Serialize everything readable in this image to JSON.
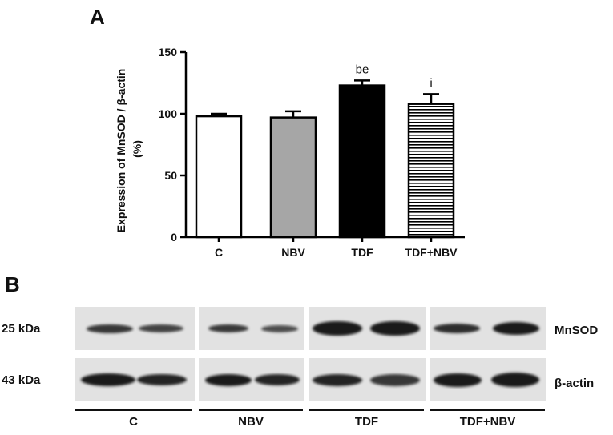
{
  "panel_a_letter": "A",
  "panel_b_letter": "B",
  "chart_data": {
    "type": "bar",
    "title": "",
    "xlabel": "",
    "ylabel": "Expression of MnSOD / β-actin (%)",
    "ylabel_lines": [
      "Expression of MnSOD / β-actin",
      "(%)"
    ],
    "ylim": [
      0,
      150
    ],
    "yticks": [
      0,
      50,
      100,
      150
    ],
    "categories": [
      "C",
      "NBV",
      "TDF",
      "TDF+NBV"
    ],
    "values": [
      98,
      97,
      123,
      108
    ],
    "errors": [
      2,
      5,
      4,
      8
    ],
    "annotations": [
      "",
      "",
      "be",
      "i"
    ],
    "fills": [
      "#ffffff",
      "#a6a6a6",
      "#000000",
      "stripes"
    ]
  },
  "blot": {
    "left_labels": [
      "25 kDa",
      "43 kDa"
    ],
    "right_labels": [
      "MnSOD",
      "β-actin"
    ],
    "groups": [
      "C",
      "NBV",
      "TDF",
      "TDF+NBV"
    ]
  }
}
